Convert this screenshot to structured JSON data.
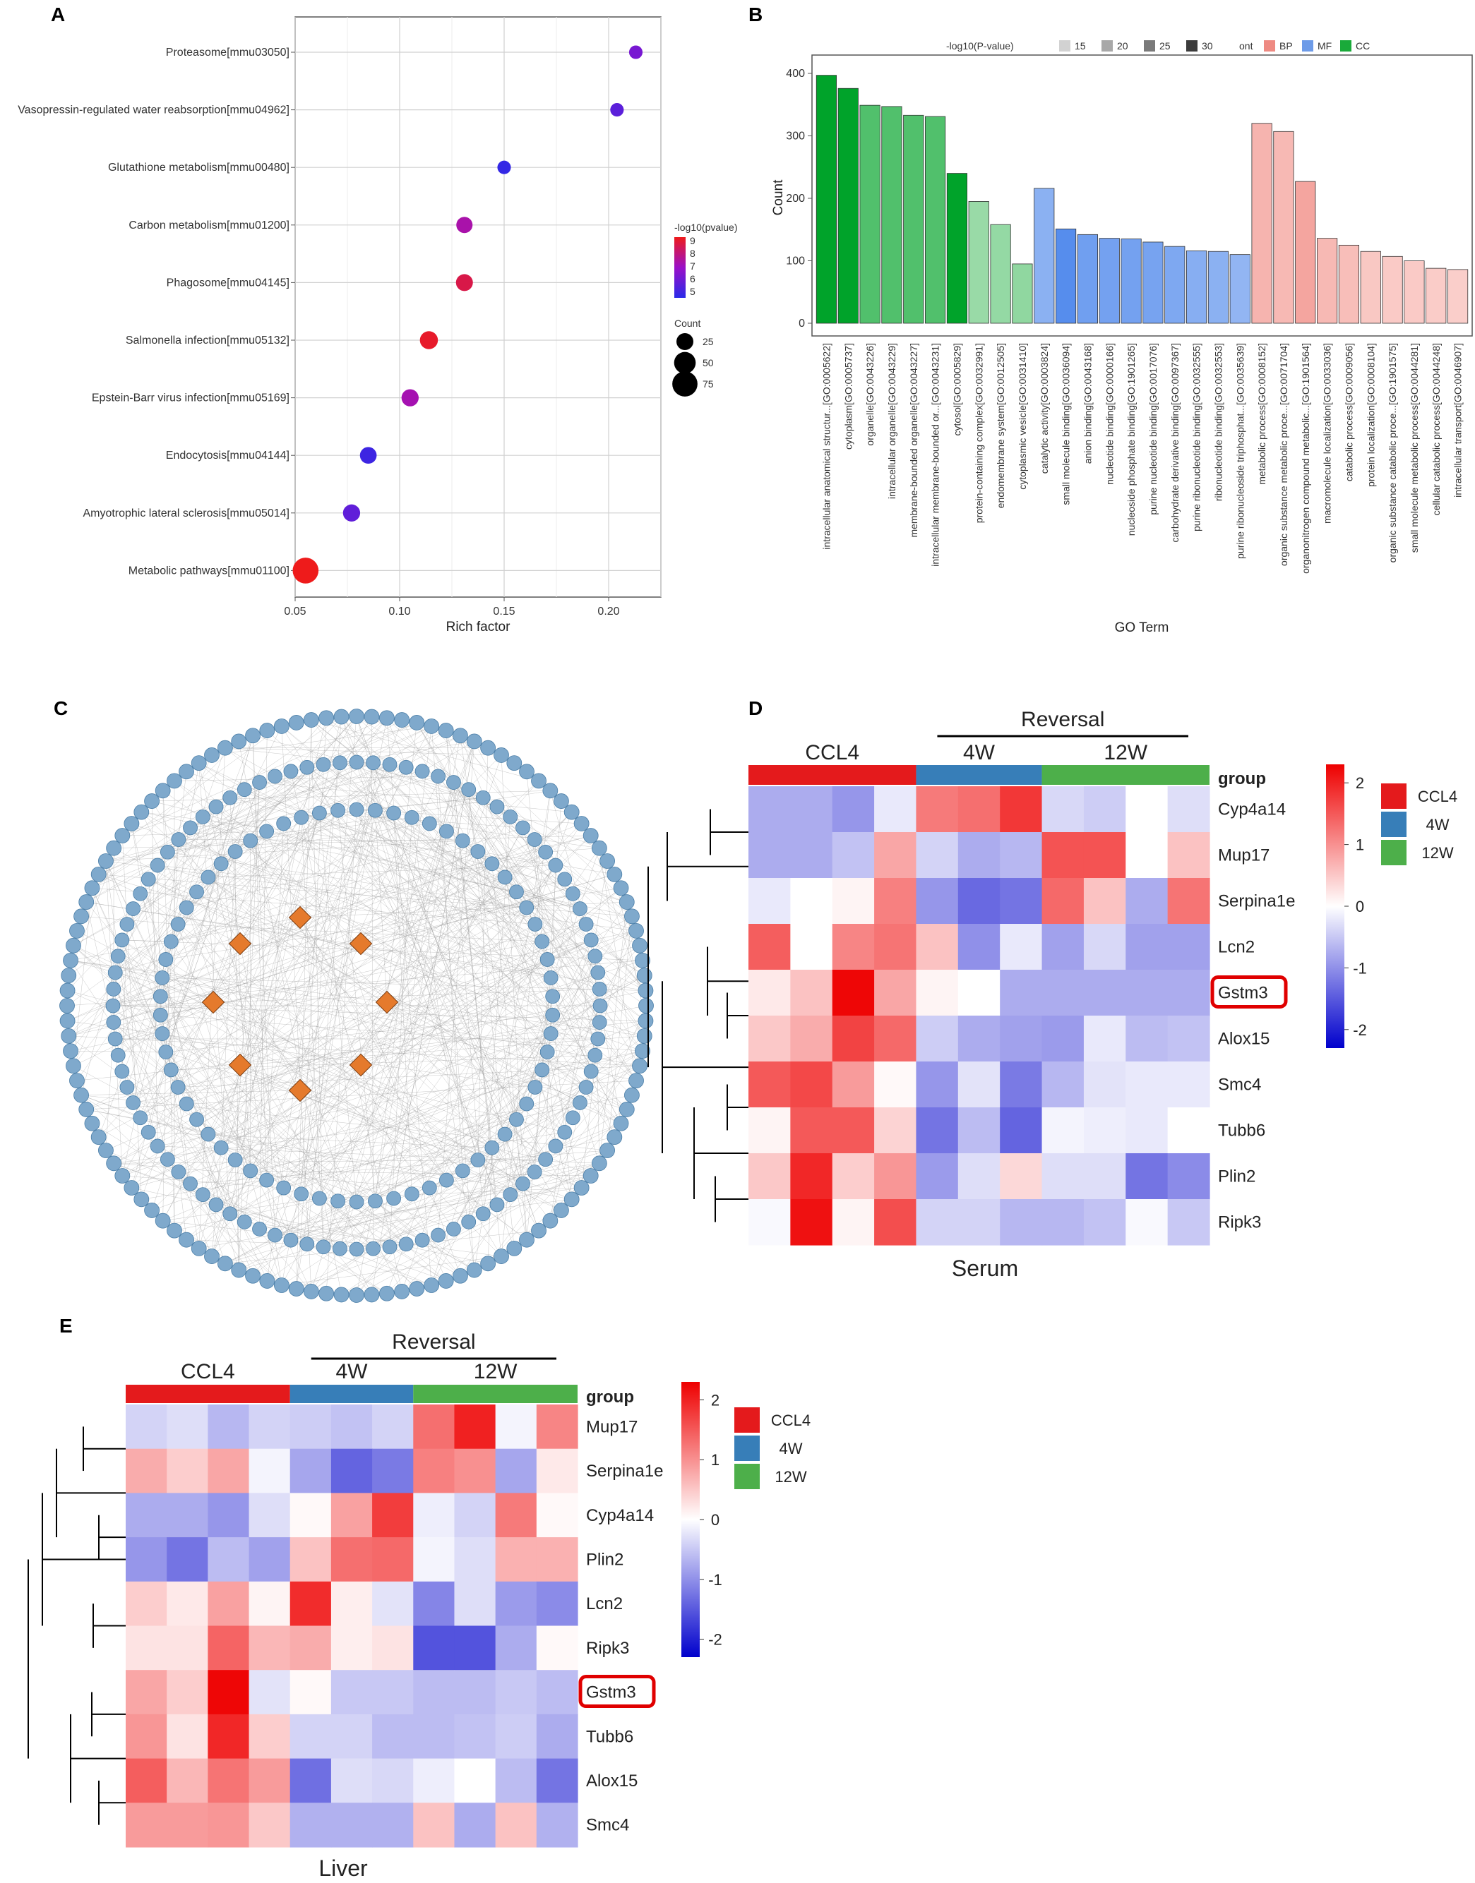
{
  "panels": {
    "a": {
      "label": "A"
    },
    "b": {
      "label": "B"
    },
    "c": {
      "label": "C"
    },
    "d": {
      "label": "D"
    },
    "e": {
      "label": "E"
    }
  },
  "chart_data": [
    {
      "id": "A",
      "type": "scatter",
      "title": "",
      "xlabel": "Rich factor",
      "ylabel": "",
      "xlim": [
        0.05,
        0.225
      ],
      "xticks": [
        "0.05",
        "0.10",
        "0.15",
        "0.20"
      ],
      "grid": true,
      "categories": [
        "Proteasome[mmu03050]",
        "Vasopressin-regulated water reabsorption[mmu04962]",
        "Glutathione metabolism[mmu00480]",
        "Carbon metabolism[mmu01200]",
        "Phagosome[mmu04145]",
        "Salmonella infection[mmu05132]",
        "Epstein-Barr virus infection[mmu05169]",
        "Endocytosis[mmu04144]",
        "Amyotrophic lateral sclerosis[mmu05014]",
        "Metabolic pathways[mmu01100]"
      ],
      "points": [
        {
          "x": 0.213,
          "neglog10p": 6.2,
          "count": 12
        },
        {
          "x": 0.204,
          "neglog10p": 5.6,
          "count": 12
        },
        {
          "x": 0.15,
          "neglog10p": 4.8,
          "count": 12
        },
        {
          "x": 0.131,
          "neglog10p": 7.3,
          "count": 22
        },
        {
          "x": 0.131,
          "neglog10p": 8.6,
          "count": 25
        },
        {
          "x": 0.114,
          "neglog10p": 9.0,
          "count": 30
        },
        {
          "x": 0.105,
          "neglog10p": 7.2,
          "count": 26
        },
        {
          "x": 0.085,
          "neglog10p": 5.0,
          "count": 24
        },
        {
          "x": 0.077,
          "neglog10p": 5.7,
          "count": 26
        },
        {
          "x": 0.055,
          "neglog10p": 9.2,
          "count": 80
        }
      ],
      "color_legend": {
        "title": "-log10(pvalue)",
        "ticks": [
          "9",
          "8",
          "7",
          "6",
          "5"
        ],
        "high": "#ee1b1b",
        "mid": "#9a10c8",
        "low": "#2a2ae8"
      },
      "size_legend": {
        "title": "Count",
        "values": [
          "25",
          "50",
          "75"
        ]
      }
    },
    {
      "id": "B",
      "type": "bar",
      "title": "",
      "xlabel": "GO Term",
      "ylabel": "Count",
      "ylim": [
        0,
        420
      ],
      "yticks": [
        "0",
        "100",
        "200",
        "300",
        "400"
      ],
      "legend": {
        "pvalue_title": "-log10(P-value)",
        "pvalue_levels": [
          "15",
          "20",
          "25",
          "30"
        ],
        "pvalue_colors": [
          "#d2d2d2",
          "#a8a8a8",
          "#7a7a7a",
          "#3c3c3c"
        ],
        "ont_title": "ont",
        "ont_items": [
          {
            "label": "BP",
            "color": "#ee8a82"
          },
          {
            "label": "MF",
            "color": "#6d9be8"
          },
          {
            "label": "CC",
            "color": "#1aaa3a"
          }
        ]
      },
      "categories": [
        "intracellular anatomical structur...[GO:0005622]",
        "cytoplasm[GO:0005737]",
        "organelle[GO:0043226]",
        "intracellular organelle[GO:0043229]",
        "membrane-bounded organelle[GO:0043227]",
        "intracellular membrane-bounded or...[GO:0043231]",
        "cytosol[GO:0005829]",
        "protein-containing complex[GO:0032991]",
        "endomembrane system[GO:0012505]",
        "cytoplasmic vesicle[GO:0031410]",
        "catalytic activity[GO:0003824]",
        "small molecule binding[GO:0036094]",
        "anion binding[GO:0043168]",
        "nucleotide binding[GO:0000166]",
        "nucleoside phosphate binding[GO:1901265]",
        "purine nucleotide binding[GO:0017076]",
        "carbohydrate derivative binding[GO:0097367]",
        "purine ribonucleotide binding[GO:0032555]",
        "ribonucleotide binding[GO:0032553]",
        "purine ribonucleoside triphosphat...[GO:0035639]",
        "metabolic process[GO:0008152]",
        "organic substance metabolic proce...[GO:0071704]",
        "organonitrogen compound metabolic...[GO:1901564]",
        "macromolecule localization[GO:0033036]",
        "catabolic process[GO:0009056]",
        "protein localization[GO:0008104]",
        "organic substance catabolic proce...[GO:1901575]",
        "small molecule metabolic process[GO:0044281]",
        "cellular catabolic process[GO:0044248]",
        "intracellular transport[GO:0046907]"
      ],
      "values": [
        397,
        376,
        349,
        347,
        333,
        331,
        240,
        195,
        158,
        95,
        216,
        151,
        142,
        136,
        135,
        130,
        123,
        116,
        115,
        110,
        320,
        307,
        227,
        136,
        125,
        115,
        107,
        100,
        88,
        86
      ],
      "ont": [
        "CC",
        "CC",
        "CC",
        "CC",
        "CC",
        "CC",
        "CC",
        "CC",
        "CC",
        "CC",
        "MF",
        "MF",
        "MF",
        "MF",
        "MF",
        "MF",
        "MF",
        "MF",
        "MF",
        "MF",
        "BP",
        "BP",
        "BP",
        "BP",
        "BP",
        "BP",
        "BP",
        "BP",
        "BP",
        "BP"
      ],
      "shade": [
        1.0,
        1.0,
        0.62,
        0.62,
        0.62,
        0.62,
        1.0,
        0.28,
        0.3,
        0.32,
        0.55,
        0.95,
        0.75,
        0.72,
        0.72,
        0.7,
        0.65,
        0.58,
        0.55,
        0.5,
        0.45,
        0.4,
        0.6,
        0.4,
        0.35,
        0.25,
        0.22,
        0.22,
        0.2,
        0.18
      ]
    },
    {
      "id": "C",
      "type": "network",
      "title": "",
      "layout": "concentric",
      "rings": [
        {
          "nodes": 120,
          "shape": "circle",
          "color": "#7fa9cc"
        },
        {
          "nodes": 92,
          "shape": "circle",
          "color": "#7fa9cc"
        },
        {
          "nodes": 66,
          "shape": "circle",
          "color": "#7fa9cc"
        },
        {
          "nodes": 8,
          "shape": "diamond",
          "color": "#e57a2c"
        }
      ]
    },
    {
      "id": "D",
      "type": "heatmap",
      "caption": "Serum",
      "reversal_label": "Reversal",
      "top_group_labels": [
        "CCL4",
        "4W",
        "12W"
      ],
      "group_header": "group",
      "groups": [
        {
          "label": "CCL4",
          "color": "#e41a1c",
          "span": 4
        },
        {
          "label": "4W",
          "color": "#377eb8",
          "span": 3
        },
        {
          "label": "12W",
          "color": "#4daf4a",
          "span": 4
        }
      ],
      "scale": {
        "ticks": [
          "2",
          "1",
          "0",
          "-1",
          "-2"
        ],
        "min": -2.3,
        "max": 2.3,
        "high": "#ee0000",
        "mid": "#ffffff",
        "low": "#0000cc"
      },
      "rows": [
        "Cyp4a14",
        "Mup17",
        "Serpina1e",
        "Lcn2",
        "Gstm3",
        "Alox15",
        "Smc4",
        "Tubb6",
        "Plin2",
        "Ripk3"
      ],
      "highlight": "Gstm3",
      "values": [
        [
          -0.75,
          -0.75,
          -0.95,
          -0.2,
          1.2,
          1.3,
          1.8,
          -0.35,
          -0.45,
          0.0,
          -0.3
        ],
        [
          -0.75,
          -0.75,
          -0.55,
          0.8,
          -0.4,
          -0.75,
          -0.65,
          1.55,
          1.55,
          0.0,
          0.55
        ],
        [
          -0.2,
          0.0,
          0.1,
          1.15,
          -0.95,
          -1.35,
          -1.25,
          1.35,
          0.55,
          -0.75,
          1.25
        ],
        [
          1.45,
          0.0,
          1.1,
          1.25,
          0.55,
          -1.0,
          -0.2,
          -0.85,
          -0.35,
          -0.85,
          -0.85
        ],
        [
          0.2,
          0.55,
          2.25,
          0.8,
          0.1,
          0.0,
          -0.75,
          -0.75,
          -0.75,
          -0.75,
          -0.75
        ],
        [
          0.5,
          0.75,
          1.7,
          1.35,
          -0.45,
          -0.75,
          -0.85,
          -0.9,
          -0.2,
          -0.6,
          -0.55
        ],
        [
          1.5,
          1.65,
          0.9,
          0.05,
          -0.95,
          -0.25,
          -1.2,
          -0.65,
          -0.25,
          -0.2,
          -0.2
        ],
        [
          0.1,
          1.5,
          1.5,
          0.4,
          -1.25,
          -0.6,
          -1.4,
          -0.1,
          -0.15,
          -0.2,
          0.0
        ],
        [
          0.5,
          1.95,
          0.45,
          0.95,
          -0.9,
          -0.3,
          0.35,
          -0.3,
          -0.3,
          -1.25,
          -1.05
        ],
        [
          -0.05,
          2.15,
          0.1,
          1.6,
          -0.4,
          -0.4,
          -0.65,
          -0.65,
          -0.55,
          -0.05,
          -0.5
        ]
      ]
    },
    {
      "id": "E",
      "type": "heatmap",
      "caption": "Liver",
      "reversal_label": "Reversal",
      "top_group_labels": [
        "CCL4",
        "4W",
        "12W"
      ],
      "group_header": "group",
      "groups": [
        {
          "label": "CCL4",
          "color": "#e41a1c",
          "span": 4
        },
        {
          "label": "4W",
          "color": "#377eb8",
          "span": 3
        },
        {
          "label": "12W",
          "color": "#4daf4a",
          "span": 4
        }
      ],
      "scale": {
        "ticks": [
          "2",
          "1",
          "0",
          "-1",
          "-2"
        ],
        "min": -2.3,
        "max": 2.3,
        "high": "#ee0000",
        "mid": "#ffffff",
        "low": "#0000cc"
      },
      "rows": [
        "Mup17",
        "Serpina1e",
        "Cyp4a14",
        "Plin2",
        "Lcn2",
        "Ripk3",
        "Gstm3",
        "Tubb6",
        "Alox15",
        "Smc4"
      ],
      "highlight": "Gstm3",
      "values": [
        [
          -0.4,
          -0.3,
          -0.65,
          -0.4,
          -0.45,
          -0.55,
          -0.4,
          1.3,
          2.0,
          -0.1,
          1.1
        ],
        [
          0.75,
          0.45,
          0.8,
          -0.1,
          -0.8,
          -1.4,
          -1.2,
          1.15,
          1.0,
          -0.8,
          0.2
        ],
        [
          -0.75,
          -0.75,
          -0.95,
          -0.3,
          0.05,
          0.85,
          1.75,
          -0.15,
          -0.4,
          1.2,
          0.05
        ],
        [
          -0.95,
          -1.25,
          -0.6,
          -0.85,
          0.55,
          1.3,
          1.35,
          -0.1,
          -0.3,
          0.7,
          0.7
        ],
        [
          0.45,
          0.2,
          0.85,
          0.1,
          1.9,
          0.15,
          -0.25,
          -1.1,
          -0.3,
          -0.9,
          -1.05
        ],
        [
          0.25,
          0.25,
          1.4,
          0.65,
          0.75,
          0.15,
          0.25,
          -1.55,
          -1.55,
          -0.75,
          0.05
        ],
        [
          0.8,
          0.45,
          2.25,
          -0.25,
          0.05,
          -0.5,
          -0.5,
          -0.6,
          -0.6,
          -0.5,
          -0.6
        ],
        [
          0.95,
          0.25,
          1.95,
          0.45,
          -0.4,
          -0.4,
          -0.6,
          -0.6,
          -0.55,
          -0.45,
          -0.75
        ],
        [
          1.45,
          0.65,
          1.25,
          0.9,
          -1.3,
          -0.3,
          -0.35,
          -0.15,
          0.0,
          -0.6,
          -1.25
        ],
        [
          0.9,
          0.9,
          0.95,
          0.5,
          -0.7,
          -0.7,
          -0.7,
          0.55,
          -0.75,
          0.55,
          -0.7
        ]
      ]
    }
  ]
}
